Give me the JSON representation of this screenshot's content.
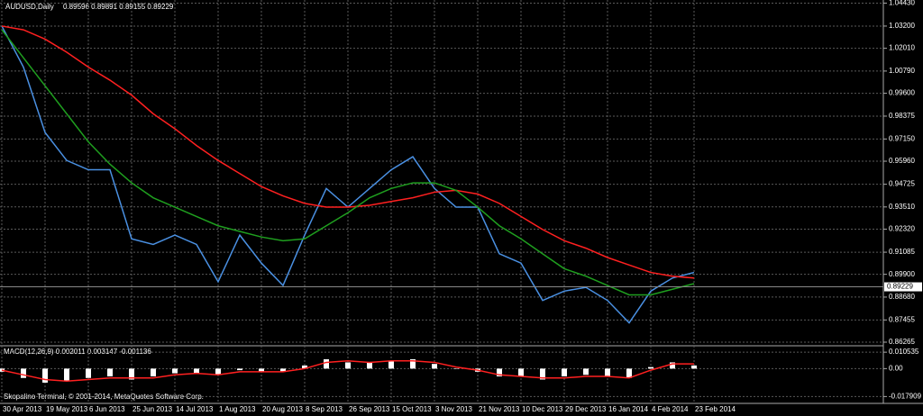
{
  "chart_data": [
    {
      "type": "line",
      "title": "AUDUSD,Daily",
      "subtitle": "0.89596 0.89891 0.89155 0.89229",
      "categories": [
        "30 Apr 2013",
        null,
        "19 May 2013",
        null,
        "6 Jun 2013",
        null,
        "25 Jun 2013",
        null,
        "14 Jul 2013",
        null,
        "1 Aug 2013",
        null,
        "20 Aug 2013",
        null,
        "8 Sep 2013",
        null,
        "26 Sep 2013",
        null,
        "15 Oct 2013",
        null,
        "3 Nov 2013",
        null,
        "21 Nov 2013",
        null,
        "10 Dec 2013",
        null,
        "29 Dec 2013",
        null,
        "16 Jan 2014",
        null,
        "4 Feb 2014",
        null,
        "23 Feb 2014"
      ],
      "series": [
        {
          "color": "#4a90e2",
          "values": [
            1.032,
            1.01,
            0.975,
            0.96,
            0.955,
            0.955,
            0.918,
            0.915,
            0.92,
            0.915,
            0.895,
            0.92,
            0.905,
            0.893,
            0.92,
            0.945,
            0.935,
            0.945,
            0.955,
            0.962,
            0.945,
            0.935,
            0.935,
            0.91,
            0.905,
            0.885,
            0.89,
            0.892,
            0.885,
            0.873,
            0.89,
            0.897,
            0.9
          ]
        },
        {
          "color": "#ff2020",
          "values": [
            1.032,
            1.03,
            1.025,
            1.018,
            1.01,
            1.003,
            0.995,
            0.985,
            0.977,
            0.968,
            0.96,
            0.953,
            0.946,
            0.941,
            0.937,
            0.935,
            0.935,
            0.936,
            0.938,
            0.94,
            0.943,
            0.944,
            0.942,
            0.937,
            0.93,
            0.923,
            0.917,
            0.913,
            0.908,
            0.904,
            0.9,
            0.898,
            0.897
          ]
        },
        {
          "color": "#1f9f1f",
          "values": [
            1.03,
            1.015,
            1.0,
            0.985,
            0.97,
            0.958,
            0.948,
            0.94,
            0.935,
            0.93,
            0.925,
            0.922,
            0.919,
            0.917,
            0.918,
            0.925,
            0.932,
            0.94,
            0.945,
            0.948,
            0.948,
            0.944,
            0.935,
            0.925,
            0.918,
            0.91,
            0.902,
            0.898,
            0.893,
            0.888,
            0.888,
            0.891,
            0.894
          ]
        }
      ],
      "ylim": [
        0.8612,
        1.045
      ],
      "yticks": [
        {
          "value": 1.0443,
          "label": "1.04430"
        },
        {
          "value": 1.032,
          "label": "1.03200"
        },
        {
          "value": 1.0201,
          "label": "1.02010"
        },
        {
          "value": 1.0079,
          "label": "1.00790"
        },
        {
          "value": 0.996,
          "label": "0.99600"
        },
        0.98375,
        {
          "value": 0.9715,
          "label": "0.97150"
        },
        {
          "value": 0.9596,
          "label": "0.95960"
        },
        0.94725,
        {
          "value": 0.9351,
          "label": "0.93510"
        },
        {
          "value": 0.9232,
          "label": "0.92320"
        },
        0.91085,
        {
          "value": 0.899,
          "label": "0.89900"
        },
        {
          "value": 0.8868,
          "label": "0.88680"
        },
        0.87455,
        0.86265
      ],
      "current_price": 0.89229,
      "grid": true
    },
    {
      "type": "bar",
      "title": "MACD(12,26,9) 0.002011 0.003147 -0.001136",
      "series": [
        {
          "color": "#ffffff",
          "values": [
            -0.002,
            -0.006,
            -0.009,
            -0.008,
            -0.006,
            -0.005,
            -0.007,
            -0.005,
            -0.003,
            -0.003,
            -0.004,
            -0.001,
            -0.002,
            -0.002,
            0.002,
            0.006,
            0.004,
            0.004,
            0.005,
            0.006,
            0.003,
            0.0,
            -0.002,
            -0.005,
            -0.005,
            -0.007,
            -0.005,
            -0.004,
            -0.005,
            -0.006,
            0.001,
            0.004,
            0.002
          ]
        },
        {
          "color": "#ff2020",
          "values": [
            -0.001,
            -0.004,
            -0.007,
            -0.008,
            -0.007,
            -0.006,
            -0.006,
            -0.006,
            -0.004,
            -0.003,
            -0.004,
            -0.002,
            -0.002,
            -0.002,
            0.0,
            0.004,
            0.005,
            0.004,
            0.005,
            0.005,
            0.004,
            0.001,
            -0.001,
            -0.004,
            -0.005,
            -0.006,
            -0.006,
            -0.005,
            -0.005,
            -0.006,
            -0.001,
            0.003,
            0.003
          ]
        }
      ],
      "ylim": [
        -0.02,
        0.0135
      ],
      "yticks": [
        0.010535,
        {
          "value": 0,
          "label": "0.00"
        },
        -0.017909
      ],
      "annotation": "Skopalino Terminal, © 2001-2014, MetaQuotes Software Corp.",
      "grid": true
    }
  ]
}
